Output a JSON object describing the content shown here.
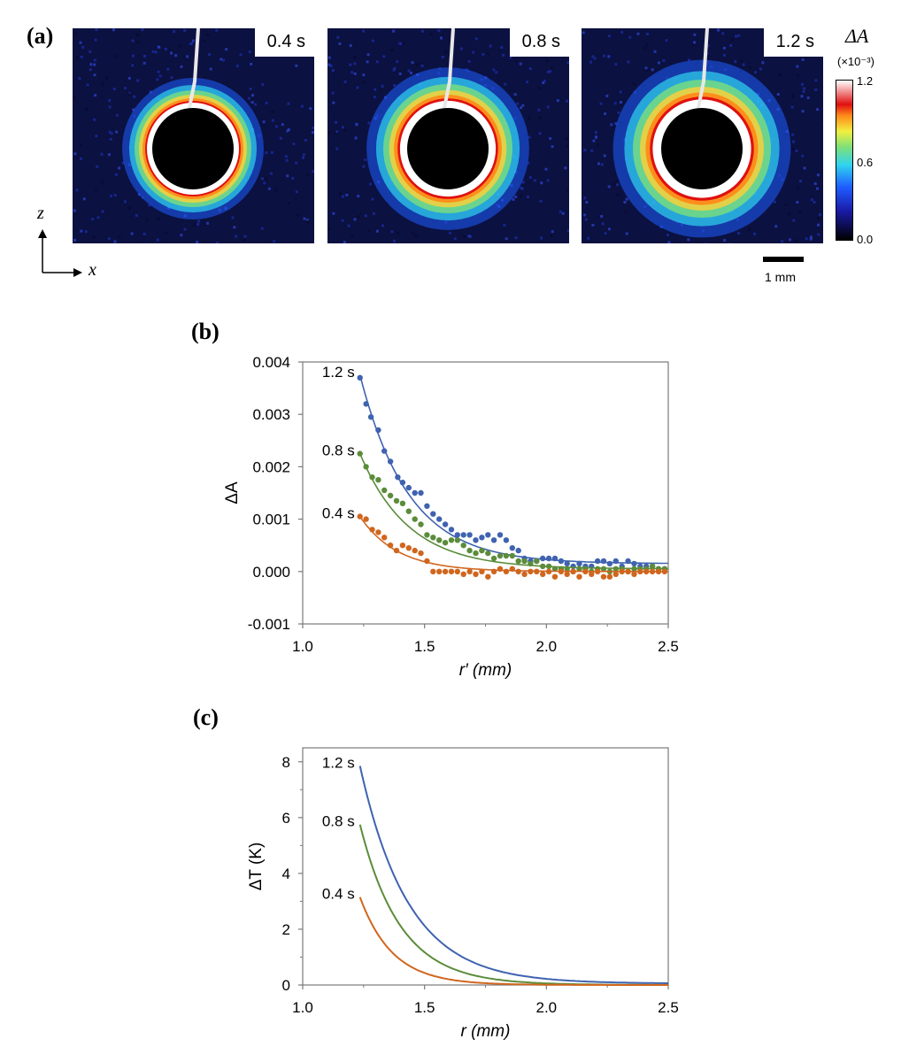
{
  "panel_a": {
    "label": "(a)",
    "frames": [
      {
        "time": "0.4 s",
        "ring": 1.0
      },
      {
        "time": "0.8 s",
        "ring": 1.35
      },
      {
        "time": "1.2 s",
        "ring": 1.6
      }
    ],
    "colorbar": {
      "title": "ΔA",
      "units": "(×10⁻³)",
      "ticks": [
        "1.2",
        "0.6",
        "0.0"
      ],
      "colors": [
        "#000000",
        "#1a1aa6",
        "#1f5cff",
        "#2fd4f0",
        "#7ce07a",
        "#f0f040",
        "#ff8a1a",
        "#e01010",
        "#ffffff"
      ]
    },
    "scalebar_label": "1 mm",
    "axis_z": "z",
    "axis_x": "x"
  },
  "chart_data": [
    {
      "panel": "(b)",
      "type": "scatter",
      "title": "",
      "xlabel": "r′ (mm)",
      "ylabel": "ΔA",
      "xlim": [
        1.0,
        2.5
      ],
      "ylim": [
        -0.001,
        0.004
      ],
      "xticks": [
        "1.0",
        "1.5",
        "2.0",
        "2.5"
      ],
      "yticks": [
        "-0.001",
        "0.000",
        "0.001",
        "0.002",
        "0.003",
        "0.004"
      ],
      "series": [
        {
          "name": "1.2 s",
          "color": "#3f63b0",
          "points": [
            [
              1.235,
              0.0037
            ],
            [
              1.26,
              0.0032
            ],
            [
              1.28,
              0.00295
            ],
            [
              1.31,
              0.0027
            ],
            [
              1.335,
              0.0023
            ],
            [
              1.36,
              0.0021
            ],
            [
              1.39,
              0.0018
            ],
            [
              1.41,
              0.0017
            ],
            [
              1.435,
              0.0016
            ],
            [
              1.46,
              0.0015
            ],
            [
              1.485,
              0.0015
            ],
            [
              1.51,
              0.00125
            ],
            [
              1.535,
              0.0011
            ],
            [
              1.56,
              0.001
            ],
            [
              1.585,
              0.0009
            ],
            [
              1.61,
              0.0008
            ],
            [
              1.635,
              0.0007
            ],
            [
              1.66,
              0.0007
            ],
            [
              1.685,
              0.0007
            ],
            [
              1.71,
              0.0006
            ],
            [
              1.735,
              0.00065
            ],
            [
              1.76,
              0.0007
            ],
            [
              1.785,
              0.0006
            ],
            [
              1.81,
              0.0007
            ],
            [
              1.835,
              0.0006
            ],
            [
              1.86,
              0.00045
            ],
            [
              1.885,
              0.0004
            ],
            [
              1.91,
              0.00025
            ],
            [
              1.935,
              0.0002
            ],
            [
              1.96,
              0.0002
            ],
            [
              1.985,
              0.00025
            ],
            [
              2.01,
              0.00025
            ],
            [
              2.035,
              0.00025
            ],
            [
              2.06,
              0.0002
            ],
            [
              2.085,
              0.00015
            ],
            [
              2.11,
              0.0001
            ],
            [
              2.135,
              0.00015
            ],
            [
              2.16,
              0.0001
            ],
            [
              2.185,
              0.0001
            ],
            [
              2.21,
              0.0002
            ],
            [
              2.235,
              0.0002
            ],
            [
              2.26,
              0.00015
            ],
            [
              2.285,
              0.0002
            ],
            [
              2.31,
              0.0001
            ],
            [
              2.335,
              0.0002
            ],
            [
              2.36,
              0.00015
            ],
            [
              2.385,
              0.0001
            ],
            [
              2.41,
              0.0001
            ],
            [
              2.435,
              0.0001
            ],
            [
              2.46,
              5e-05
            ],
            [
              2.485,
              5e-05
            ]
          ],
          "fit": {
            "a": 0.0036,
            "decay": 5.0,
            "offset": 0.00015,
            "x0": 1.235
          }
        },
        {
          "name": "0.8 s",
          "color": "#5b8c3a",
          "points": [
            [
              1.235,
              0.00225
            ],
            [
              1.26,
              0.002
            ],
            [
              1.285,
              0.0018
            ],
            [
              1.31,
              0.00175
            ],
            [
              1.335,
              0.00155
            ],
            [
              1.36,
              0.00145
            ],
            [
              1.385,
              0.00135
            ],
            [
              1.41,
              0.0013
            ],
            [
              1.435,
              0.00115
            ],
            [
              1.46,
              0.001
            ],
            [
              1.485,
              0.0009
            ],
            [
              1.51,
              0.0007
            ],
            [
              1.535,
              0.00065
            ],
            [
              1.56,
              0.0006
            ],
            [
              1.585,
              0.00055
            ],
            [
              1.61,
              0.0006
            ],
            [
              1.635,
              0.0006
            ],
            [
              1.66,
              0.0005
            ],
            [
              1.685,
              0.0004
            ],
            [
              1.71,
              0.00035
            ],
            [
              1.735,
              0.0004
            ],
            [
              1.76,
              0.00035
            ],
            [
              1.785,
              0.00025
            ],
            [
              1.81,
              0.0003
            ],
            [
              1.835,
              0.0003
            ],
            [
              1.86,
              0.0003
            ],
            [
              1.885,
              0.0002
            ],
            [
              1.91,
              0.0002
            ],
            [
              1.935,
              0.00015
            ],
            [
              1.96,
              0.0002
            ],
            [
              1.985,
              0.0001
            ],
            [
              2.01,
              0.0001
            ],
            [
              2.035,
              5e-05
            ],
            [
              2.06,
              5e-05
            ],
            [
              2.085,
              5e-05
            ],
            [
              2.11,
              0.0
            ],
            [
              2.135,
              5e-05
            ],
            [
              2.16,
              5e-05
            ],
            [
              2.185,
              0.0
            ],
            [
              2.21,
              5e-05
            ],
            [
              2.235,
              5e-05
            ],
            [
              2.26,
              0.0
            ],
            [
              2.285,
              5e-05
            ],
            [
              2.31,
              5e-05
            ],
            [
              2.335,
              0.0
            ],
            [
              2.36,
              5e-05
            ],
            [
              2.385,
              5e-05
            ],
            [
              2.41,
              5e-05
            ],
            [
              2.435,
              0.0001
            ],
            [
              2.46,
              5e-05
            ],
            [
              2.485,
              5e-05
            ]
          ],
          "fit": {
            "a": 0.0022,
            "decay": 5.0,
            "offset": 5e-05,
            "x0": 1.235
          }
        },
        {
          "name": "0.4 s",
          "color": "#d0661e",
          "points": [
            [
              1.235,
              0.00105
            ],
            [
              1.26,
              0.001
            ],
            [
              1.285,
              0.0008
            ],
            [
              1.31,
              0.00075
            ],
            [
              1.335,
              0.00065
            ],
            [
              1.36,
              0.0005
            ],
            [
              1.385,
              0.0004
            ],
            [
              1.41,
              0.0005
            ],
            [
              1.435,
              0.00045
            ],
            [
              1.46,
              0.0004
            ],
            [
              1.485,
              0.00035
            ],
            [
              1.51,
              0.0002
            ],
            [
              1.535,
              0.0
            ],
            [
              1.56,
              0.0
            ],
            [
              1.585,
              0.0
            ],
            [
              1.61,
              0.0
            ],
            [
              1.635,
              0.0
            ],
            [
              1.66,
              -5e-05
            ],
            [
              1.685,
              0.0
            ],
            [
              1.71,
              -5e-05
            ],
            [
              1.735,
              0.0
            ],
            [
              1.76,
              -0.0001
            ],
            [
              1.785,
              0.0
            ],
            [
              1.81,
              5e-05
            ],
            [
              1.835,
              0.0
            ],
            [
              1.86,
              5e-05
            ],
            [
              1.885,
              0.0
            ],
            [
              1.91,
              -5e-05
            ],
            [
              1.935,
              0.0
            ],
            [
              1.96,
              0.0
            ],
            [
              1.985,
              -5e-05
            ],
            [
              2.01,
              0.0
            ],
            [
              2.035,
              -0.0001
            ],
            [
              2.06,
              0.0
            ],
            [
              2.085,
              -5e-05
            ],
            [
              2.11,
              0.0
            ],
            [
              2.135,
              -0.0001
            ],
            [
              2.16,
              0.0
            ],
            [
              2.185,
              -5e-05
            ],
            [
              2.21,
              0.0
            ],
            [
              2.235,
              -0.0001
            ],
            [
              2.26,
              -0.0001
            ],
            [
              2.285,
              -5e-05
            ],
            [
              2.31,
              0.0
            ],
            [
              2.335,
              0.0
            ],
            [
              2.36,
              -5e-05
            ],
            [
              2.385,
              0.0
            ],
            [
              2.41,
              0.0
            ],
            [
              2.435,
              0.0
            ],
            [
              2.46,
              0.0
            ],
            [
              2.485,
              0.0
            ]
          ],
          "fit": {
            "a": 0.00105,
            "decay": 6.5,
            "offset": 0.0,
            "x0": 1.235
          }
        }
      ]
    },
    {
      "panel": "(c)",
      "type": "line",
      "title": "",
      "xlabel": "r (mm)",
      "ylabel": "ΔT (K)",
      "xlim": [
        1.0,
        2.5
      ],
      "ylim": [
        0,
        8.5
      ],
      "xticks": [
        "1.0",
        "1.5",
        "2.0",
        "2.5"
      ],
      "yticks": [
        "0",
        "2",
        "4",
        "6",
        "8"
      ],
      "series": [
        {
          "name": "1.2 s",
          "color": "#3f63b0",
          "fit": {
            "a": 7.8,
            "decay": 5.0,
            "offset": 0.05,
            "x0": 1.235
          }
        },
        {
          "name": "0.8 s",
          "color": "#5b8c3a",
          "fit": {
            "a": 5.75,
            "decay": 6.0,
            "offset": 0.0,
            "x0": 1.235
          }
        },
        {
          "name": "0.4 s",
          "color": "#d0661e",
          "fit": {
            "a": 3.15,
            "decay": 7.5,
            "offset": 0.0,
            "x0": 1.235
          }
        }
      ]
    }
  ]
}
